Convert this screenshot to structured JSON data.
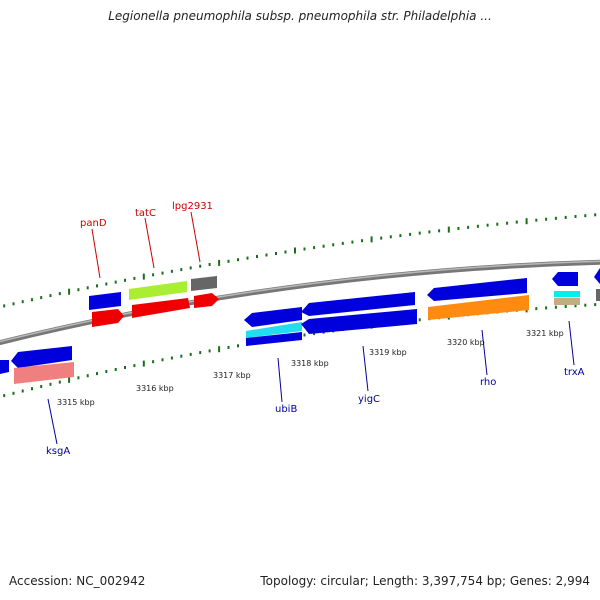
{
  "title": "Legionella pneumophila subsp. pneumophila str. Philadelphia ...",
  "footer": {
    "accession": "Accession: NC_002942",
    "summary": "Topology: circular; Length: 3,397,754 bp; Genes: 2,994"
  },
  "colors": {
    "backbone": "#808080",
    "forward_label": "#cc0000",
    "reverse_label": "#000099",
    "dots": "#1a6e1a"
  },
  "scale": {
    "ticks": [
      {
        "label": "3315 kbp"
      },
      {
        "label": "3316 kbp"
      },
      {
        "label": "3317 kbp"
      },
      {
        "label": "3318 kbp"
      },
      {
        "label": "3319 kbp"
      },
      {
        "label": "3320 kbp"
      },
      {
        "label": "3321 kbp"
      }
    ]
  },
  "gene_labels": {
    "forward": [
      "panD",
      "tatC",
      "lpg2931"
    ],
    "reverse": [
      "ksgA",
      "ubiB",
      "yigC",
      "rho",
      "trxA"
    ]
  }
}
